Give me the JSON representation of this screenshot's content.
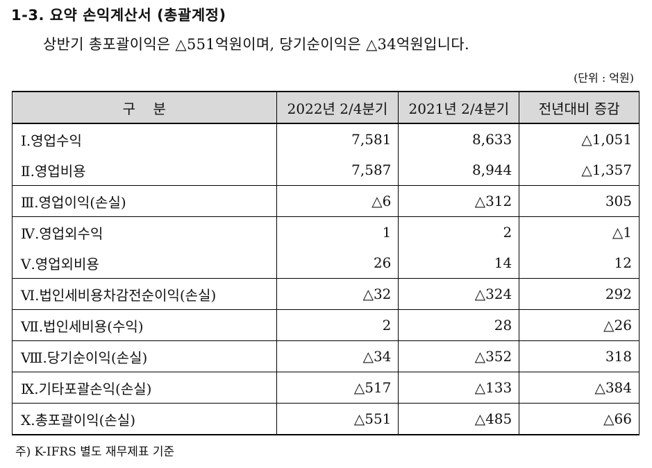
{
  "title": "1-3. 요약 손익계산서 (총괄계정)",
  "summary": "상반기 총포괄이익은 △551억원이며, 당기순이익은 △34억원입니다.",
  "unit": "(단위 : 억원)",
  "table": {
    "headers": [
      "구    분",
      "2022년 2/4분기",
      "2021년 2/4분기",
      "전년대비 증감"
    ],
    "rows": [
      {
        "label": "Ⅰ.영업수익",
        "v2022": "7,581",
        "v2021": "8,633",
        "diff": "△1,051"
      },
      {
        "label": "Ⅱ.영업비용",
        "v2022": "7,587",
        "v2021": "8,944",
        "diff": "△1,357"
      },
      {
        "label": "Ⅲ.영업이익(손실)",
        "v2022": "△6",
        "v2021": "△312",
        "diff": "305"
      },
      {
        "label": "Ⅳ.영업외수익",
        "v2022": "1",
        "v2021": "2",
        "diff": "△1"
      },
      {
        "label": "Ⅴ.영업외비용",
        "v2022": "26",
        "v2021": "14",
        "diff": "12"
      },
      {
        "label": "Ⅵ.법인세비용차감전순이익(손실)",
        "v2022": "△32",
        "v2021": "△324",
        "diff": "292"
      },
      {
        "label": "Ⅶ.법인세비용(수익)",
        "v2022": "2",
        "v2021": "28",
        "diff": "△26"
      },
      {
        "label": "Ⅷ.당기순이익(손실)",
        "v2022": "△34",
        "v2021": "△352",
        "diff": "318"
      },
      {
        "label": "Ⅸ.기타포괄손익(손실)",
        "v2022": "△517",
        "v2021": "△133",
        "diff": "△384"
      },
      {
        "label": "Ⅹ.총포괄이익(손실)",
        "v2022": "△551",
        "v2021": "△485",
        "diff": "△66"
      }
    ]
  },
  "note": "주) K-IFRS 별도 재무제표 기준"
}
